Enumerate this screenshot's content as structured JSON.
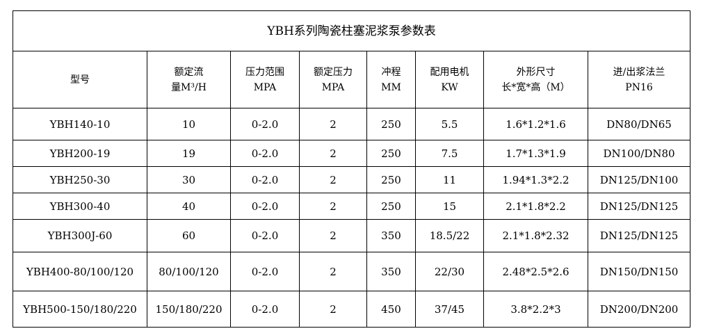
{
  "title": "YBH系列陶瓷柱塞泥浆泵参数表",
  "headers": [
    [
      "型号"
    ],
    [
      "额定流",
      "量M³/H"
    ],
    [
      "压力范围",
      "MPA"
    ],
    [
      "额定压力",
      "MPA"
    ],
    [
      "冲程",
      "MM"
    ],
    [
      "配用电机",
      "KW"
    ],
    [
      "外形尺寸",
      "长*宽*高（M）"
    ],
    [
      "进/出浆法兰",
      "PN16"
    ]
  ],
  "rows": [
    [
      "YBH140-10",
      "10",
      "0-2.0",
      "2",
      "250",
      "5.5",
      "1.6*1.2*1.6",
      "DN80/DN65"
    ],
    [
      "YBH200-19",
      "19",
      "0-2.0",
      "2",
      "250",
      "7.5",
      "1.7*1.3*1.9",
      "DN100/DN80"
    ],
    [
      "YBH250-30",
      "30",
      "0-2.0",
      "2",
      "250",
      "11",
      "1.94*1.3*2.2",
      "DN125/DN100"
    ],
    [
      "YBH300-40",
      "40",
      "0-2.0",
      "2",
      "250",
      "15",
      "2.1*1.8*2.2",
      "DN125/DN125"
    ],
    [
      "YBH300J-60",
      "60",
      "0-2.0",
      "2",
      "350",
      "18.5/22",
      "2.1*1.8*2.32",
      "DN125/DN125"
    ],
    [
      "YBH400-80/100/120",
      "80/100/120",
      "0-2.0",
      "2",
      "350",
      "22/30",
      "2.48*2.5*2.6",
      "DN150/DN150"
    ],
    [
      "YBH500-150/180/220",
      "150/180/220",
      "0-2.0",
      "2",
      "450",
      "37/45",
      "3.8*2.2*3",
      "DN200/DN200"
    ]
  ]
}
